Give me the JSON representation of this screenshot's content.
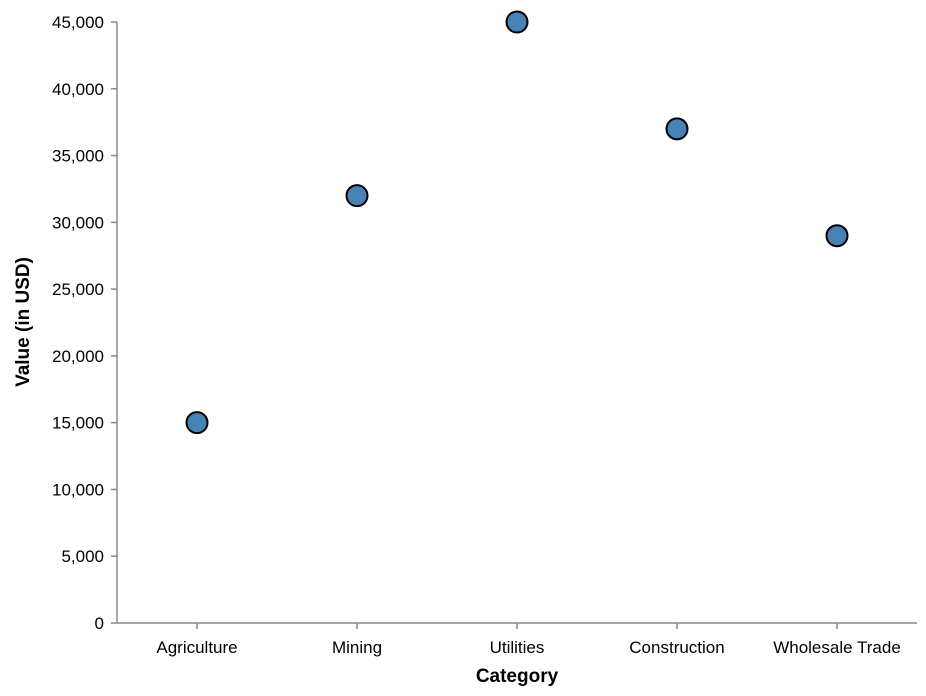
{
  "chart_data": {
    "type": "scatter",
    "categories": [
      "Agriculture",
      "Mining",
      "Utilities",
      "Construction",
      "Wholesale Trade"
    ],
    "values": [
      15000,
      32000,
      45000,
      37000,
      29000
    ],
    "xlabel": "Category",
    "ylabel": "Value (in USD)",
    "ylim": [
      0,
      45000
    ],
    "yticks": [
      0,
      5000,
      10000,
      15000,
      20000,
      25000,
      30000,
      35000,
      40000,
      45000
    ],
    "grid": false,
    "marker_color": "#4682b4",
    "marker_stroke": "#000000",
    "axis_color": "#888888"
  }
}
